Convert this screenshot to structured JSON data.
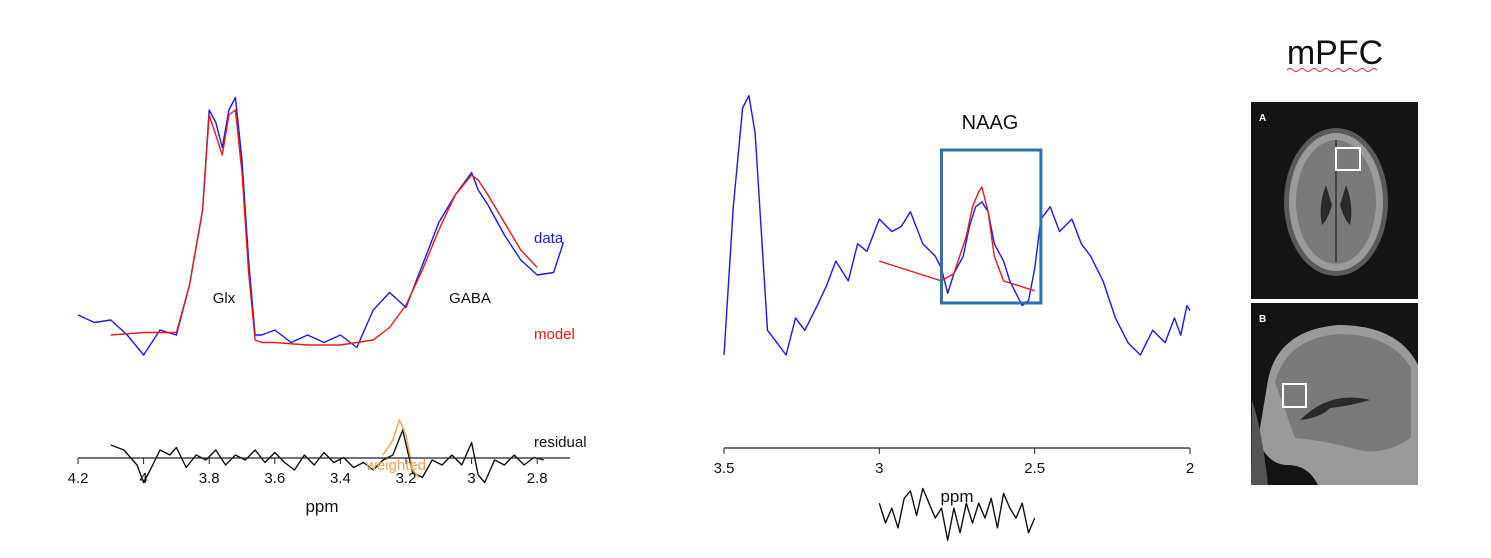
{
  "chart_data": [
    {
      "type": "line",
      "xlabel": "ppm",
      "xlim": [
        4.2,
        2.7
      ],
      "x_reversed": true,
      "xticks": [
        "4.2",
        "4",
        "3.8",
        "3.6",
        "3.4",
        "3.2",
        "3",
        "2.8"
      ],
      "annotations": {
        "glx": "Glx",
        "gaba": "GABA"
      },
      "series": [
        {
          "name": "data",
          "color": "#1a1ae6",
          "x": [
            4.2,
            4.15,
            4.1,
            4.05,
            4.0,
            3.95,
            3.9,
            3.86,
            3.82,
            3.8,
            3.78,
            3.76,
            3.74,
            3.72,
            3.7,
            3.68,
            3.66,
            3.64,
            3.6,
            3.55,
            3.5,
            3.45,
            3.4,
            3.35,
            3.3,
            3.25,
            3.2,
            3.15,
            3.1,
            3.05,
            3.0,
            2.98,
            2.95,
            2.9,
            2.85,
            2.8,
            2.75,
            2.72
          ],
          "y": [
            0.18,
            0.15,
            0.16,
            0.1,
            0.02,
            0.12,
            0.1,
            0.3,
            0.6,
            1.0,
            0.95,
            0.85,
            1.0,
            1.05,
            0.8,
            0.4,
            0.1,
            0.1,
            0.12,
            0.07,
            0.1,
            0.07,
            0.1,
            0.05,
            0.2,
            0.27,
            0.21,
            0.38,
            0.55,
            0.66,
            0.75,
            0.68,
            0.62,
            0.5,
            0.4,
            0.34,
            0.35,
            0.47
          ]
        },
        {
          "name": "model",
          "color": "#e61a1a",
          "x": [
            4.1,
            4.0,
            3.9,
            3.86,
            3.82,
            3.8,
            3.78,
            3.76,
            3.74,
            3.72,
            3.7,
            3.68,
            3.66,
            3.64,
            3.6,
            3.5,
            3.4,
            3.3,
            3.25,
            3.2,
            3.15,
            3.1,
            3.05,
            3.0,
            2.98,
            2.95,
            2.9,
            2.85,
            2.8
          ],
          "y": [
            0.1,
            0.11,
            0.11,
            0.3,
            0.6,
            0.98,
            0.9,
            0.82,
            0.98,
            1.0,
            0.75,
            0.35,
            0.08,
            0.07,
            0.07,
            0.06,
            0.06,
            0.08,
            0.13,
            0.22,
            0.36,
            0.52,
            0.66,
            0.74,
            0.72,
            0.66,
            0.55,
            0.44,
            0.37
          ]
        },
        {
          "name": "residual",
          "color": "#111111",
          "x": [
            4.1,
            4.06,
            4.02,
            4.0,
            3.98,
            3.95,
            3.92,
            3.9,
            3.87,
            3.84,
            3.81,
            3.78,
            3.75,
            3.72,
            3.69,
            3.66,
            3.63,
            3.6,
            3.57,
            3.54,
            3.51,
            3.48,
            3.45,
            3.42,
            3.39,
            3.36,
            3.33,
            3.3,
            3.27,
            3.24,
            3.21,
            3.18,
            3.15,
            3.12,
            3.09,
            3.06,
            3.03,
            3.0,
            2.98,
            2.96,
            2.93,
            2.9,
            2.87,
            2.84,
            2.81,
            2.78
          ],
          "y": [
            -0.34,
            -0.36,
            -0.42,
            -0.49,
            -0.44,
            -0.36,
            -0.38,
            -0.35,
            -0.43,
            -0.38,
            -0.4,
            -0.36,
            -0.42,
            -0.38,
            -0.4,
            -0.36,
            -0.41,
            -0.37,
            -0.41,
            -0.44,
            -0.38,
            -0.42,
            -0.37,
            -0.41,
            -0.39,
            -0.43,
            -0.41,
            -0.44,
            -0.4,
            -0.38,
            -0.28,
            -0.45,
            -0.47,
            -0.4,
            -0.42,
            -0.38,
            -0.42,
            -0.33,
            -0.46,
            -0.49,
            -0.4,
            -0.42,
            -0.38,
            -0.42,
            -0.39,
            -0.4
          ]
        },
        {
          "name": "weighted",
          "color": "#f0a050",
          "x": [
            3.27,
            3.24,
            3.22,
            3.2,
            3.18,
            3.16
          ],
          "y": [
            -0.38,
            -0.32,
            -0.24,
            -0.3,
            -0.44,
            -0.47
          ]
        }
      ]
    },
    {
      "type": "line",
      "xlabel": "ppm",
      "xlim": [
        3.5,
        2.0
      ],
      "x_reversed": true,
      "xticks": [
        "3.5",
        "3",
        "2.5",
        "2"
      ],
      "title": "NAAG",
      "highlight_box": {
        "x_from": 2.8,
        "x_to": 2.48
      },
      "series": [
        {
          "name": "data",
          "color": "#1a1ae6",
          "x": [
            3.5,
            3.47,
            3.44,
            3.42,
            3.4,
            3.38,
            3.36,
            3.33,
            3.3,
            3.27,
            3.24,
            3.2,
            3.17,
            3.14,
            3.1,
            3.07,
            3.04,
            3.0,
            2.96,
            2.93,
            2.9,
            2.86,
            2.82,
            2.8,
            2.78,
            2.76,
            2.73,
            2.71,
            2.69,
            2.67,
            2.65,
            2.63,
            2.6,
            2.58,
            2.56,
            2.54,
            2.52,
            2.5,
            2.48,
            2.45,
            2.42,
            2.38,
            2.35,
            2.32,
            2.28,
            2.24,
            2.2,
            2.16,
            2.12,
            2.08,
            2.05,
            2.03,
            2.01,
            2.0
          ],
          "y": [
            0.0,
            0.6,
            1.0,
            1.05,
            0.9,
            0.5,
            0.1,
            0.05,
            0.0,
            0.15,
            0.1,
            0.2,
            0.28,
            0.38,
            0.3,
            0.45,
            0.42,
            0.55,
            0.5,
            0.52,
            0.58,
            0.45,
            0.4,
            0.35,
            0.25,
            0.33,
            0.4,
            0.52,
            0.6,
            0.62,
            0.58,
            0.45,
            0.38,
            0.3,
            0.25,
            0.2,
            0.22,
            0.35,
            0.55,
            0.6,
            0.5,
            0.55,
            0.45,
            0.4,
            0.3,
            0.15,
            0.05,
            0.0,
            0.1,
            0.05,
            0.15,
            0.08,
            0.2,
            0.18
          ]
        },
        {
          "name": "model",
          "color": "#e61a1a",
          "x": [
            3.0,
            2.9,
            2.8,
            2.76,
            2.72,
            2.7,
            2.68,
            2.67,
            2.65,
            2.63,
            2.6,
            2.55,
            2.5
          ],
          "y": [
            0.38,
            0.34,
            0.3,
            0.33,
            0.48,
            0.6,
            0.66,
            0.68,
            0.58,
            0.4,
            0.3,
            0.28,
            0.26
          ]
        },
        {
          "name": "residual",
          "color": "#111111",
          "x": [
            3.0,
            2.98,
            2.96,
            2.94,
            2.92,
            2.9,
            2.88,
            2.86,
            2.84,
            2.82,
            2.8,
            2.78,
            2.76,
            2.74,
            2.72,
            2.7,
            2.68,
            2.66,
            2.64,
            2.62,
            2.6,
            2.58,
            2.56,
            2.54,
            2.52,
            2.5
          ],
          "y": [
            -0.6,
            -0.68,
            -0.62,
            -0.7,
            -0.58,
            -0.55,
            -0.65,
            -0.54,
            -0.6,
            -0.66,
            -0.62,
            -0.75,
            -0.62,
            -0.72,
            -0.6,
            -0.68,
            -0.6,
            -0.66,
            -0.58,
            -0.7,
            -0.56,
            -0.62,
            -0.66,
            -0.6,
            -0.72,
            -0.66
          ]
        }
      ]
    }
  ],
  "brain_panel": {
    "title": "mPFC",
    "panel_a": "A",
    "panel_b": "B"
  },
  "colors": {
    "data": "#1a1ae6",
    "model": "#e61a1a",
    "residual": "#111111",
    "weighted": "#f0a050",
    "box": "#2e6fb2"
  }
}
